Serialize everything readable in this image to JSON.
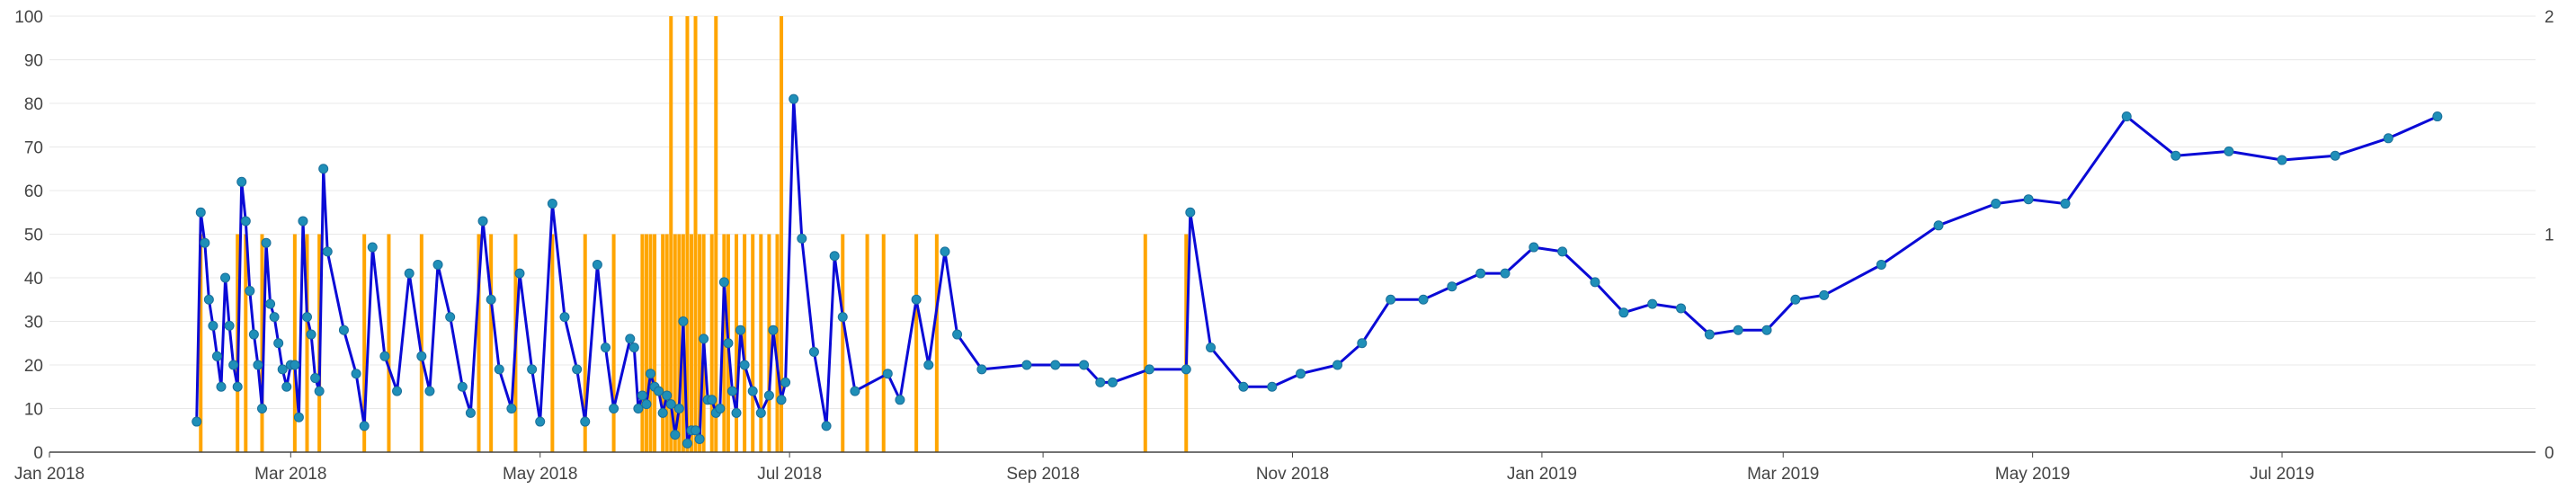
{
  "chart_data": {
    "type": "line",
    "title": "",
    "xlabel": "",
    "ylabel": "",
    "y_left": {
      "range": [
        0,
        100
      ],
      "ticks": [
        "0",
        "10",
        "20",
        "30",
        "40",
        "50",
        "60",
        "70",
        "80",
        "90",
        "100"
      ]
    },
    "y_right": {
      "range": [
        0,
        2
      ],
      "ticks": [
        "0",
        "1",
        "2"
      ]
    },
    "x_range": [
      "2018-01-01",
      "2019-09-01"
    ],
    "x_ticks": [
      {
        "date": "2018-01-01",
        "label": "Jan 2018"
      },
      {
        "date": "2018-03-01",
        "label": "Mar 2018"
      },
      {
        "date": "2018-05-01",
        "label": "May 2018"
      },
      {
        "date": "2018-07-01",
        "label": "Jul 2018"
      },
      {
        "date": "2018-09-01",
        "label": "Sep 2018"
      },
      {
        "date": "2018-11-01",
        "label": "Nov 2018"
      },
      {
        "date": "2019-01-01",
        "label": "Jan 2019"
      },
      {
        "date": "2019-03-01",
        "label": "Mar 2019"
      },
      {
        "date": "2019-05-01",
        "label": "May 2019"
      },
      {
        "date": "2019-07-01",
        "label": "Jul 2019"
      }
    ],
    "grid": "horizontal",
    "colors": {
      "line": "#0a0ad6",
      "marker": "#1f8fb8",
      "bars": "#ffa500",
      "grid": "#e8e8e8",
      "axis": "#444444"
    },
    "series": [
      {
        "type": "line",
        "axis": "left",
        "points": [
          [
            "2018-02-06",
            7
          ],
          [
            "2018-02-07",
            55
          ],
          [
            "2018-02-08",
            48
          ],
          [
            "2018-02-09",
            35
          ],
          [
            "2018-02-10",
            29
          ],
          [
            "2018-02-11",
            22
          ],
          [
            "2018-02-12",
            15
          ],
          [
            "2018-02-13",
            40
          ],
          [
            "2018-02-14",
            29
          ],
          [
            "2018-02-15",
            20
          ],
          [
            "2018-02-16",
            15
          ],
          [
            "2018-02-17",
            62
          ],
          [
            "2018-02-18",
            53
          ],
          [
            "2018-02-19",
            37
          ],
          [
            "2018-02-20",
            27
          ],
          [
            "2018-02-21",
            20
          ],
          [
            "2018-02-22",
            10
          ],
          [
            "2018-02-23",
            48
          ],
          [
            "2018-02-24",
            34
          ],
          [
            "2018-02-25",
            31
          ],
          [
            "2018-02-26",
            25
          ],
          [
            "2018-02-27",
            19
          ],
          [
            "2018-02-28",
            15
          ],
          [
            "2018-03-01",
            20
          ],
          [
            "2018-03-02",
            20
          ],
          [
            "2018-03-03",
            8
          ],
          [
            "2018-03-04",
            53
          ],
          [
            "2018-03-05",
            31
          ],
          [
            "2018-03-06",
            27
          ],
          [
            "2018-03-07",
            17
          ],
          [
            "2018-03-08",
            14
          ],
          [
            "2018-03-09",
            65
          ],
          [
            "2018-03-10",
            46
          ],
          [
            "2018-03-14",
            28
          ],
          [
            "2018-03-17",
            18
          ],
          [
            "2018-03-19",
            6
          ],
          [
            "2018-03-21",
            47
          ],
          [
            "2018-03-24",
            22
          ],
          [
            "2018-03-27",
            14
          ],
          [
            "2018-03-30",
            41
          ],
          [
            "2018-04-02",
            22
          ],
          [
            "2018-04-04",
            14
          ],
          [
            "2018-04-06",
            43
          ],
          [
            "2018-04-09",
            31
          ],
          [
            "2018-04-12",
            15
          ],
          [
            "2018-04-14",
            9
          ],
          [
            "2018-04-17",
            53
          ],
          [
            "2018-04-19",
            35
          ],
          [
            "2018-04-21",
            19
          ],
          [
            "2018-04-24",
            10
          ],
          [
            "2018-04-26",
            41
          ],
          [
            "2018-04-29",
            19
          ],
          [
            "2018-05-01",
            7
          ],
          [
            "2018-05-04",
            57
          ],
          [
            "2018-05-07",
            31
          ],
          [
            "2018-05-10",
            19
          ],
          [
            "2018-05-12",
            7
          ],
          [
            "2018-05-15",
            43
          ],
          [
            "2018-05-17",
            24
          ],
          [
            "2018-05-19",
            10
          ],
          [
            "2018-05-23",
            26
          ],
          [
            "2018-05-24",
            24
          ],
          [
            "2018-05-25",
            10
          ],
          [
            "2018-05-26",
            13
          ],
          [
            "2018-05-27",
            11
          ],
          [
            "2018-05-28",
            18
          ],
          [
            "2018-05-29",
            15
          ],
          [
            "2018-05-30",
            14
          ],
          [
            "2018-05-31",
            9
          ],
          [
            "2018-06-01",
            13
          ],
          [
            "2018-06-02",
            11
          ],
          [
            "2018-06-03",
            4
          ],
          [
            "2018-06-04",
            10
          ],
          [
            "2018-06-05",
            30
          ],
          [
            "2018-06-06",
            2
          ],
          [
            "2018-06-07",
            5
          ],
          [
            "2018-06-08",
            5
          ],
          [
            "2018-06-09",
            3
          ],
          [
            "2018-06-10",
            26
          ],
          [
            "2018-06-11",
            12
          ],
          [
            "2018-06-12",
            12
          ],
          [
            "2018-06-13",
            9
          ],
          [
            "2018-06-14",
            10
          ],
          [
            "2018-06-15",
            39
          ],
          [
            "2018-06-16",
            25
          ],
          [
            "2018-06-17",
            14
          ],
          [
            "2018-06-18",
            9
          ],
          [
            "2018-06-19",
            28
          ],
          [
            "2018-06-20",
            20
          ],
          [
            "2018-06-22",
            14
          ],
          [
            "2018-06-24",
            9
          ],
          [
            "2018-06-26",
            13
          ],
          [
            "2018-06-27",
            28
          ],
          [
            "2018-06-29",
            12
          ],
          [
            "2018-06-30",
            16
          ],
          [
            "2018-07-02",
            81
          ],
          [
            "2018-07-04",
            49
          ],
          [
            "2018-07-07",
            23
          ],
          [
            "2018-07-10",
            6
          ],
          [
            "2018-07-12",
            45
          ],
          [
            "2018-07-14",
            31
          ],
          [
            "2018-07-17",
            14
          ],
          [
            "2018-07-25",
            18
          ],
          [
            "2018-07-28",
            12
          ],
          [
            "2018-08-01",
            35
          ],
          [
            "2018-08-04",
            20
          ],
          [
            "2018-08-08",
            46
          ],
          [
            "2018-08-11",
            27
          ],
          [
            "2018-08-17",
            19
          ],
          [
            "2018-08-28",
            20
          ],
          [
            "2018-09-04",
            20
          ],
          [
            "2018-09-11",
            20
          ],
          [
            "2018-09-15",
            16
          ],
          [
            "2018-09-18",
            16
          ],
          [
            "2018-09-27",
            19
          ],
          [
            "2018-10-06",
            19
          ],
          [
            "2018-10-07",
            55
          ],
          [
            "2018-10-12",
            24
          ],
          [
            "2018-10-20",
            15
          ],
          [
            "2018-10-27",
            15
          ],
          [
            "2018-11-03",
            18
          ],
          [
            "2018-11-12",
            20
          ],
          [
            "2018-11-18",
            25
          ],
          [
            "2018-11-25",
            35
          ],
          [
            "2018-12-03",
            35
          ],
          [
            "2018-12-10",
            38
          ],
          [
            "2018-12-17",
            41
          ],
          [
            "2018-12-23",
            41
          ],
          [
            "2018-12-30",
            47
          ],
          [
            "2019-01-06",
            46
          ],
          [
            "2019-01-14",
            39
          ],
          [
            "2019-01-21",
            32
          ],
          [
            "2019-01-28",
            34
          ],
          [
            "2019-02-04",
            33
          ],
          [
            "2019-02-11",
            27
          ],
          [
            "2019-02-18",
            28
          ],
          [
            "2019-02-25",
            28
          ],
          [
            "2019-03-04",
            35
          ],
          [
            "2019-03-11",
            36
          ],
          [
            "2019-03-25",
            43
          ],
          [
            "2019-04-08",
            52
          ],
          [
            "2019-04-22",
            57
          ],
          [
            "2019-04-30",
            58
          ],
          [
            "2019-05-09",
            57
          ],
          [
            "2019-05-24",
            77
          ],
          [
            "2019-06-05",
            68
          ],
          [
            "2019-06-18",
            69
          ],
          [
            "2019-07-01",
            67
          ],
          [
            "2019-07-14",
            68
          ],
          [
            "2019-07-27",
            72
          ],
          [
            "2019-08-08",
            77
          ]
        ]
      },
      {
        "type": "bar",
        "axis": "right",
        "points": [
          [
            "2018-02-07",
            1
          ],
          [
            "2018-02-16",
            1
          ],
          [
            "2018-02-18",
            1
          ],
          [
            "2018-02-22",
            1
          ],
          [
            "2018-03-02",
            1
          ],
          [
            "2018-03-05",
            1
          ],
          [
            "2018-03-08",
            1
          ],
          [
            "2018-03-19",
            1
          ],
          [
            "2018-03-25",
            1
          ],
          [
            "2018-04-02",
            1
          ],
          [
            "2018-04-16",
            1
          ],
          [
            "2018-04-19",
            1
          ],
          [
            "2018-04-25",
            1
          ],
          [
            "2018-05-04",
            1
          ],
          [
            "2018-05-12",
            1
          ],
          [
            "2018-05-19",
            1
          ],
          [
            "2018-05-26",
            1
          ],
          [
            "2018-05-27",
            1
          ],
          [
            "2018-05-28",
            1
          ],
          [
            "2018-05-29",
            1
          ],
          [
            "2018-05-31",
            1
          ],
          [
            "2018-06-01",
            1
          ],
          [
            "2018-06-02",
            2
          ],
          [
            "2018-06-03",
            1
          ],
          [
            "2018-06-04",
            1
          ],
          [
            "2018-06-05",
            1
          ],
          [
            "2018-06-06",
            2
          ],
          [
            "2018-06-07",
            1
          ],
          [
            "2018-06-08",
            2
          ],
          [
            "2018-06-09",
            1
          ],
          [
            "2018-06-10",
            1
          ],
          [
            "2018-06-12",
            1
          ],
          [
            "2018-06-13",
            2
          ],
          [
            "2018-06-15",
            1
          ],
          [
            "2018-06-16",
            1
          ],
          [
            "2018-06-18",
            1
          ],
          [
            "2018-06-20",
            1
          ],
          [
            "2018-06-22",
            1
          ],
          [
            "2018-06-24",
            1
          ],
          [
            "2018-06-26",
            1
          ],
          [
            "2018-06-28",
            1
          ],
          [
            "2018-06-29",
            2
          ],
          [
            "2018-07-14",
            1
          ],
          [
            "2018-07-20",
            1
          ],
          [
            "2018-07-24",
            1
          ],
          [
            "2018-08-01",
            1
          ],
          [
            "2018-08-06",
            1
          ],
          [
            "2018-09-26",
            1
          ],
          [
            "2018-10-06",
            1
          ]
        ]
      }
    ]
  }
}
